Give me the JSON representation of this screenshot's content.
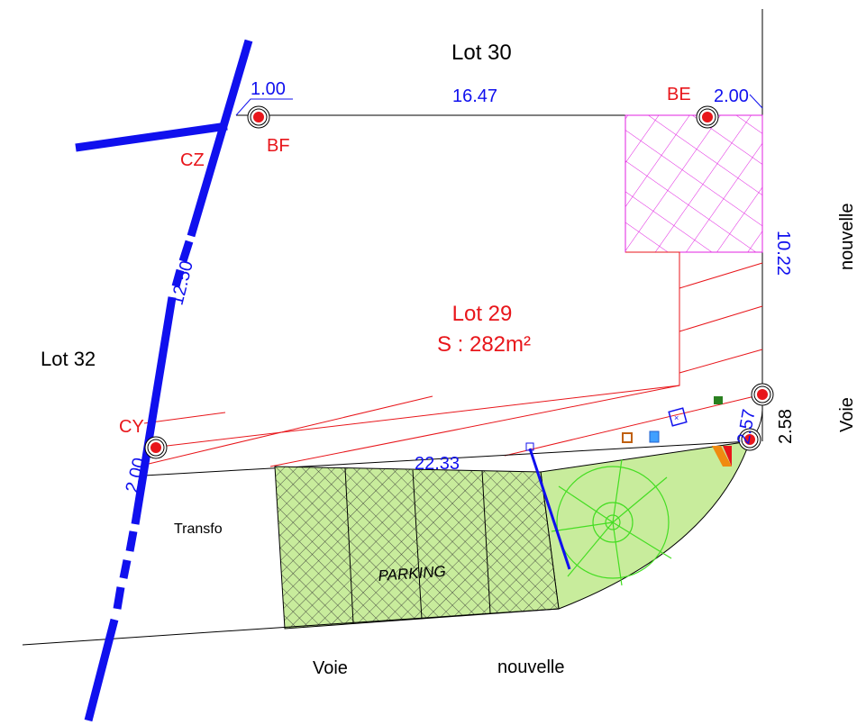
{
  "lots": {
    "lot30": "Lot 30",
    "lot32": "Lot 32",
    "lot29_name": "Lot 29",
    "lot29_area": "S : 282m²"
  },
  "points": {
    "bf": "BF",
    "be": "BE",
    "cz": "CZ",
    "cy": "CY"
  },
  "dimensions": {
    "d_1_00": "1.00",
    "d_16_47": "16.47",
    "d_2_00_top": "2.00",
    "d_10_22": "10.22",
    "d_12_50": "12.50",
    "d_2_00_left": "2.00",
    "d_22_33": "22.33",
    "d_2_57": "2.57",
    "d_2_58": "2.58"
  },
  "labels": {
    "transfo": "Transfo",
    "parking": "PARKING",
    "road_voie_bottom": "Voie",
    "road_nouvelle_bottom": "nouvelle",
    "road_voie_right": "Voie",
    "road_nouvelle_right": "nouvelle"
  },
  "colors": {
    "boundary": "#1010ee",
    "points": "#e8161b",
    "hatch_magenta": "#e020e0",
    "parking_fill": "#c8ec9c",
    "tree": "#44dd22"
  }
}
